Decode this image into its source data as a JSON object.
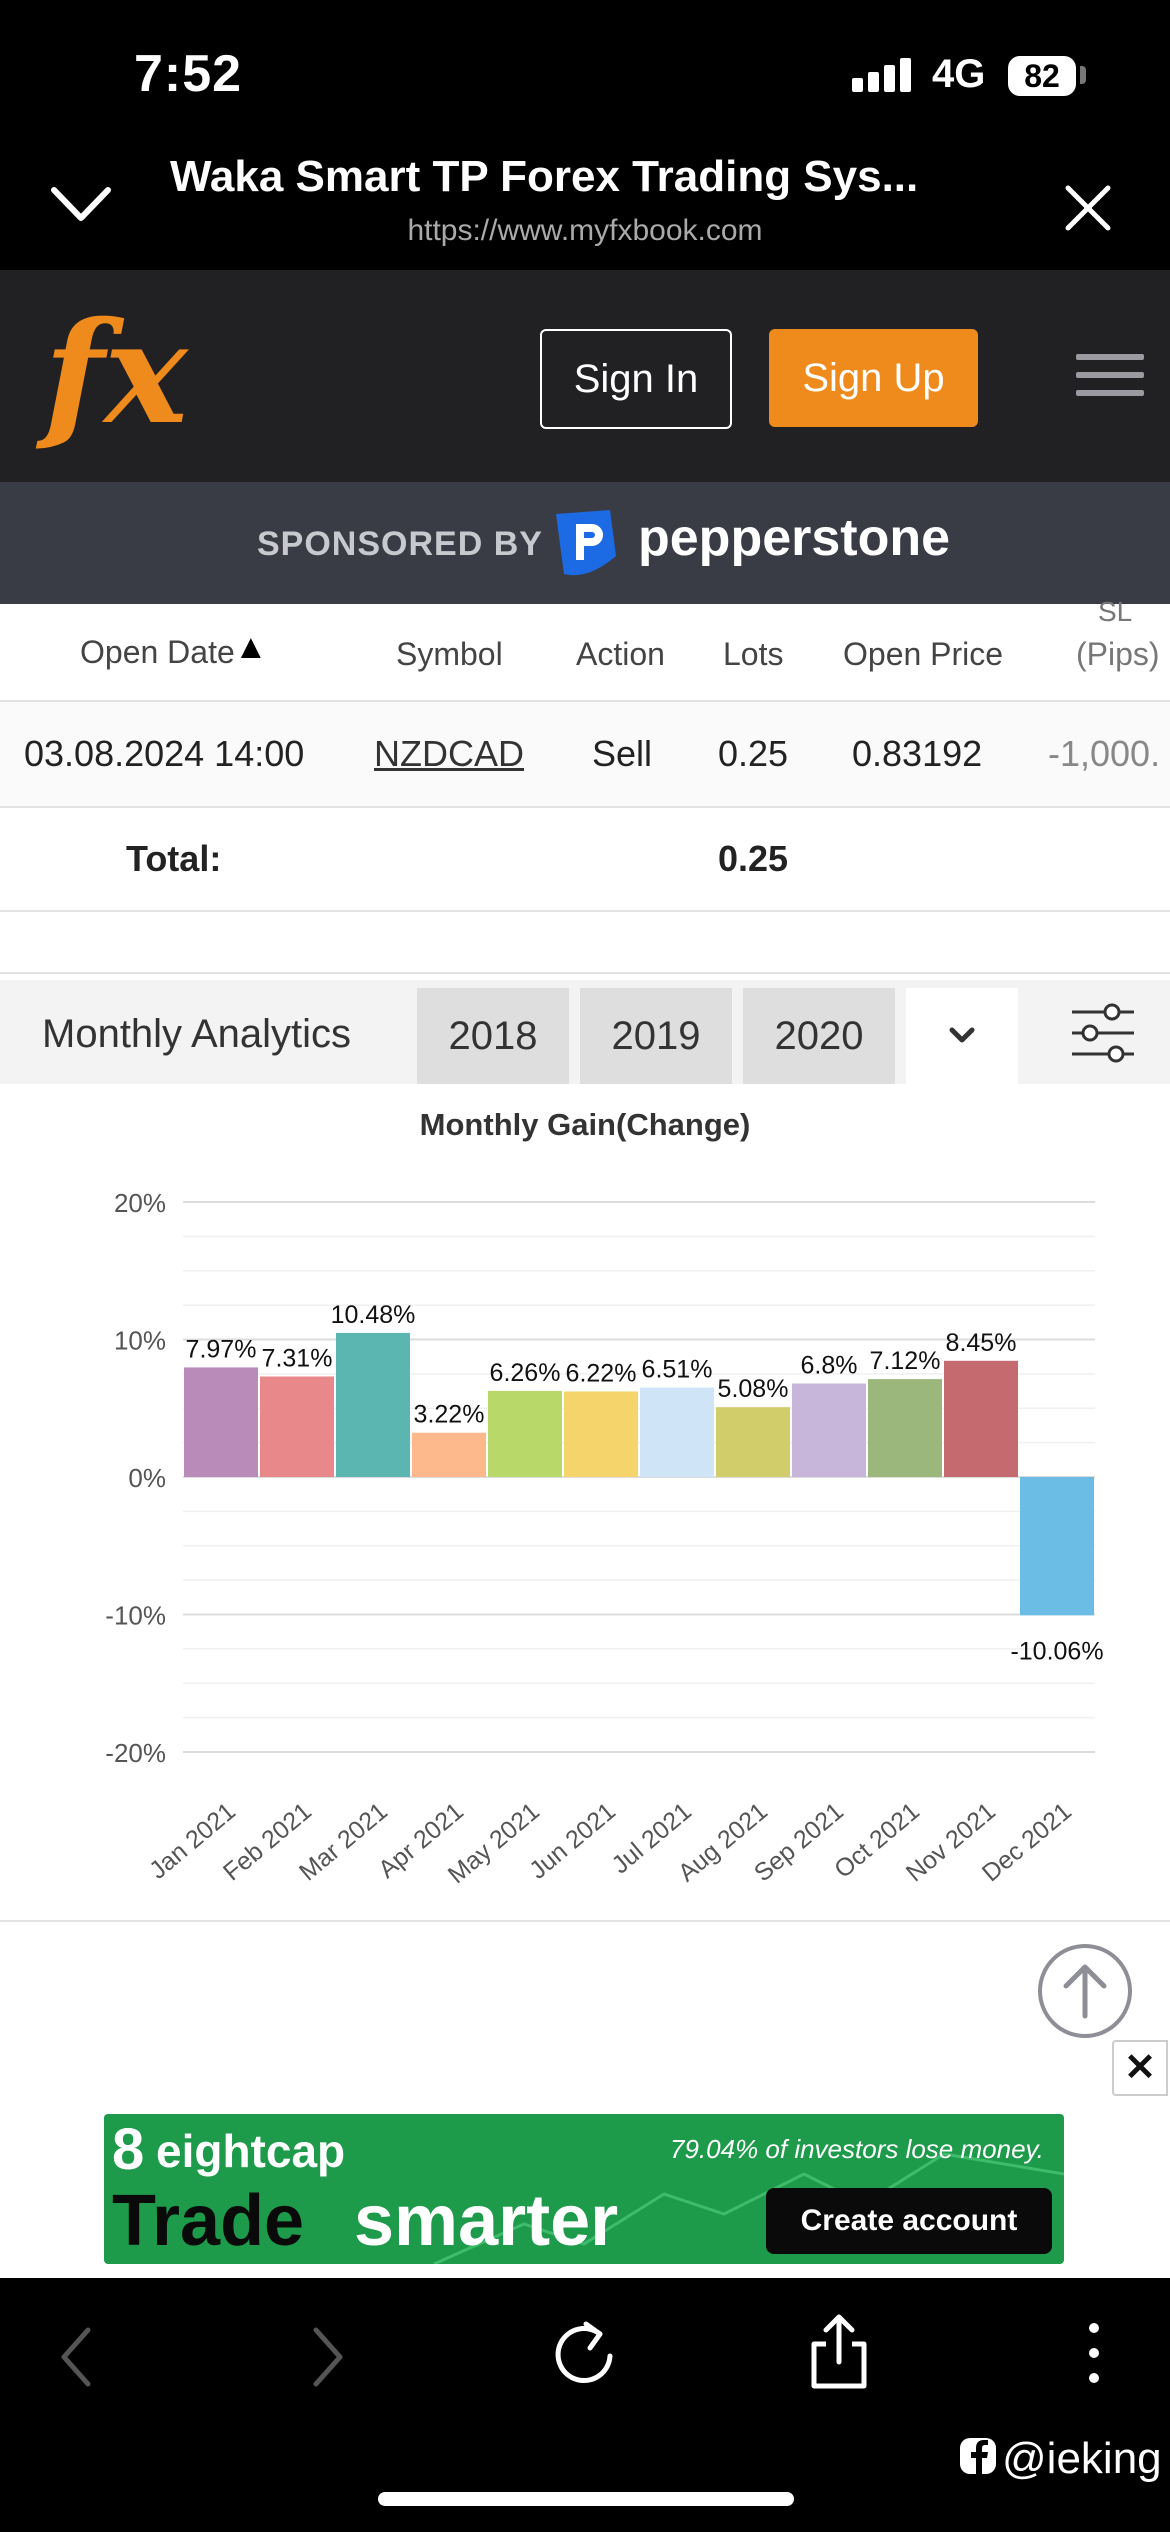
{
  "status_bar": {
    "time": "7:52",
    "network": "4G",
    "battery": "82"
  },
  "browser": {
    "title": "Waka Smart TP Forex Trading Sys...",
    "url": "https://www.myfxbook.com"
  },
  "site_nav": {
    "logo": "fx",
    "sign_in": "Sign In",
    "sign_up": "Sign Up",
    "accent": "#ef8a1c"
  },
  "sponsor": {
    "label": "SPONSORED BY",
    "brand": "pepperstone"
  },
  "trades_table": {
    "headers": {
      "open_date": "Open Date",
      "sort_indicator": "▲",
      "symbol": "Symbol",
      "action": "Action",
      "lots": "Lots",
      "open_price": "Open Price",
      "sl_line1": "SL",
      "sl_line2": "(Pips)"
    },
    "rows": [
      {
        "open_date": "03.08.2024 14:00",
        "symbol": "NZDCAD",
        "action": "Sell",
        "lots": "0.25",
        "open_price": "0.83192",
        "sl": "-1,000."
      }
    ],
    "total_label": "Total:",
    "total_lots": "0.25"
  },
  "analytics": {
    "title": "Monthly Analytics",
    "years": [
      "2018",
      "2019",
      "2020"
    ],
    "dropdown_icon": "chevron-down-icon",
    "filter_icon": "sliders-icon"
  },
  "chart_data": {
    "type": "bar",
    "title": "Monthly Gain(Change)",
    "categories": [
      "Jan 2021",
      "Feb 2021",
      "Mar 2021",
      "Apr 2021",
      "May 2021",
      "Jun 2021",
      "Jul 2021",
      "Aug 2021",
      "Sep 2021",
      "Oct 2021",
      "Nov 2021",
      "Dec 2021"
    ],
    "values": [
      7.97,
      7.31,
      10.48,
      3.22,
      6.26,
      6.22,
      6.51,
      5.08,
      6.8,
      7.12,
      8.45,
      -10.06
    ],
    "value_labels": [
      "7.97%",
      "7.31%",
      "10.48%",
      "3.22%",
      "6.26%",
      "6.22%",
      "6.51%",
      "5.08%",
      "6.8%",
      "7.12%",
      "8.45%",
      "-10.06%"
    ],
    "colors": [
      "#b98bb8",
      "#e8888a",
      "#5bb5b1",
      "#fdb98c",
      "#b8d86a",
      "#f5d46c",
      "#cfe5f7",
      "#d1cd6a",
      "#c7b6da",
      "#9cb77c",
      "#c56b70",
      "#6cbde6"
    ],
    "y_ticks": [
      "20%",
      "10%",
      "0%",
      "-10%",
      "-20%"
    ],
    "ylim": [
      -20,
      20
    ],
    "grid": true
  },
  "ad": {
    "brand": "eightcap",
    "disclaimer": "79.04% of investors lose money.",
    "slogan_1": "Trade",
    "slogan_2": "smarter",
    "cta": "Create account"
  },
  "watermark": "@ieking"
}
